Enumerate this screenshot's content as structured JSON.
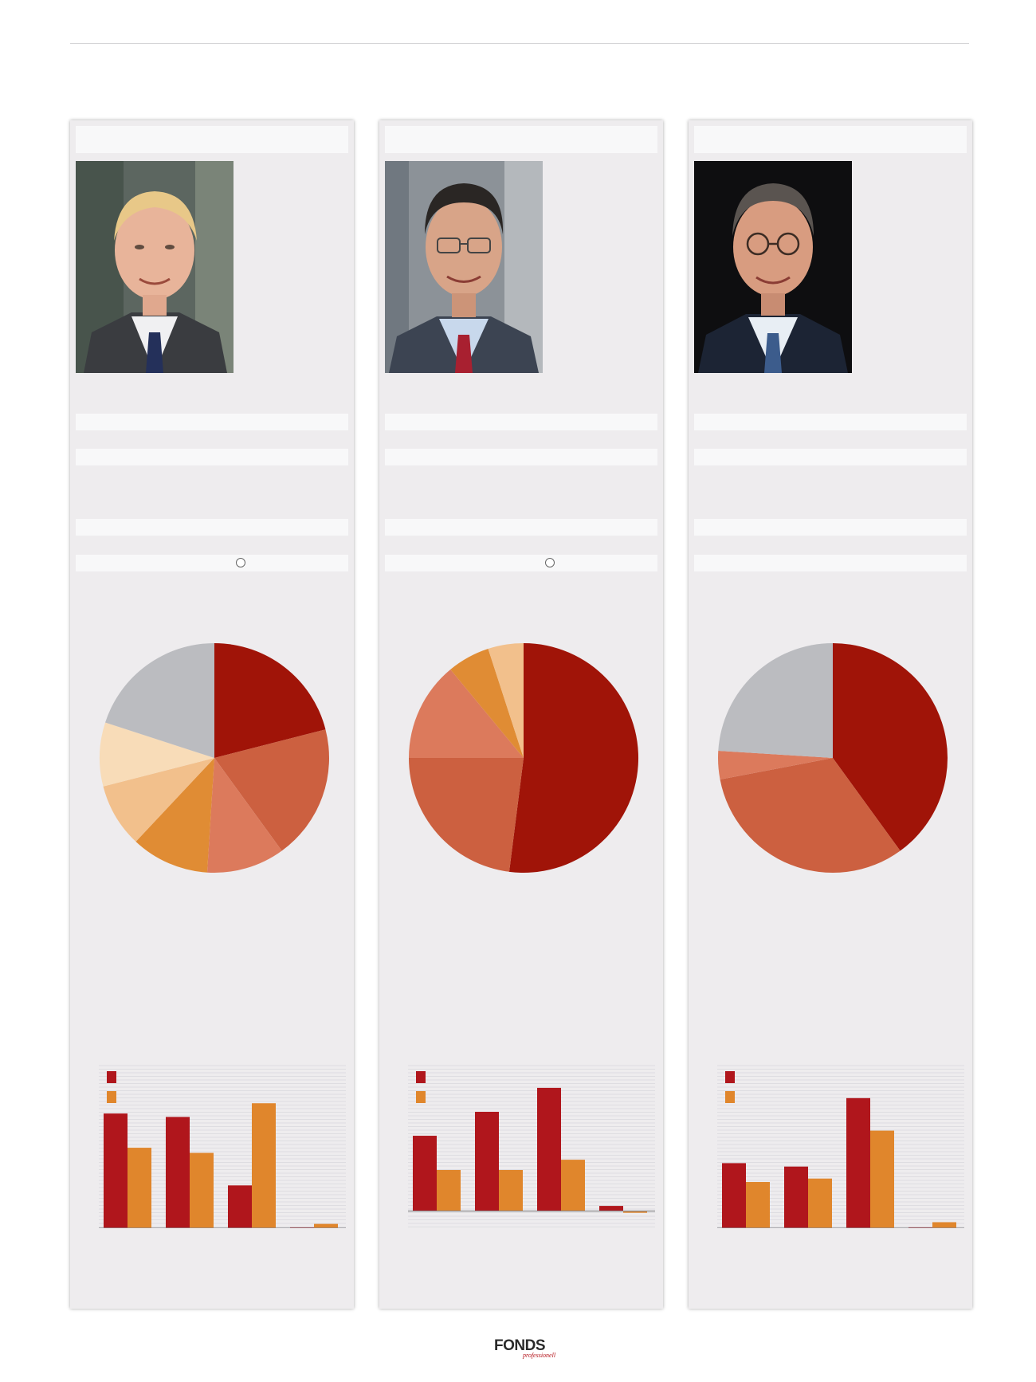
{
  "footer": {
    "logo_text": "FONDS",
    "logo_subtext": "professionell"
  },
  "columns": [
    {
      "portrait": {
        "subject": "portrait of a smiling blond man in suit with blue patterned tie"
      },
      "has_marker": true,
      "pie_chart": {
        "type": "pie",
        "values": [
          21,
          19,
          11,
          11,
          9,
          9,
          20
        ],
        "colors": [
          "#a01408",
          "#cc6040",
          "#dc7a5c",
          "#e08c34",
          "#f2c08c",
          "#f8dcb8",
          "#bbbcc0"
        ]
      },
      "bar_chart": {
        "type": "bar",
        "legend_colors": [
          "#b0161c",
          "#e0862c"
        ],
        "groups": [
          {
            "series1": 67,
            "series2": 47
          },
          {
            "series1": 65,
            "series2": 44
          },
          {
            "series1": 25,
            "series2": 73
          },
          {
            "series1": 0.5,
            "series2": 2.5
          }
        ],
        "ylim": [
          0,
          95
        ]
      }
    },
    {
      "portrait": {
        "subject": "portrait of a smiling dark-haired man with glasses and red tie"
      },
      "has_marker": true,
      "pie_chart": {
        "type": "pie",
        "values": [
          52,
          23,
          14,
          6,
          5
        ],
        "colors": [
          "#a01408",
          "#cc6040",
          "#dc7a5c",
          "#e08c34",
          "#f2c08c"
        ]
      },
      "bar_chart": {
        "type": "bar",
        "legend_colors": [
          "#b0161c",
          "#e0862c"
        ],
        "groups": [
          {
            "series1": 44,
            "series2": 24
          },
          {
            "series1": 58,
            "series2": 24
          },
          {
            "series1": 72,
            "series2": 30
          },
          {
            "series1": 3,
            "series2": -1
          }
        ],
        "ylim": [
          -10,
          85
        ]
      }
    },
    {
      "portrait": {
        "subject": "portrait of a smiling older man with glasses and blue striped tie"
      },
      "has_marker": false,
      "pie_chart": {
        "type": "pie",
        "values": [
          40,
          32,
          4,
          24
        ],
        "colors": [
          "#a01408",
          "#cc6040",
          "#dc7a5c",
          "#bbbcc0"
        ]
      },
      "bar_chart": {
        "type": "bar",
        "legend_colors": [
          "#b0161c",
          "#e0862c"
        ],
        "groups": [
          {
            "series1": 38,
            "series2": 27
          },
          {
            "series1": 36,
            "series2": 29
          },
          {
            "series1": 76,
            "series2": 57
          },
          {
            "series1": 0.5,
            "series2": 3.5
          }
        ],
        "ylim": [
          0,
          95
        ]
      }
    }
  ]
}
